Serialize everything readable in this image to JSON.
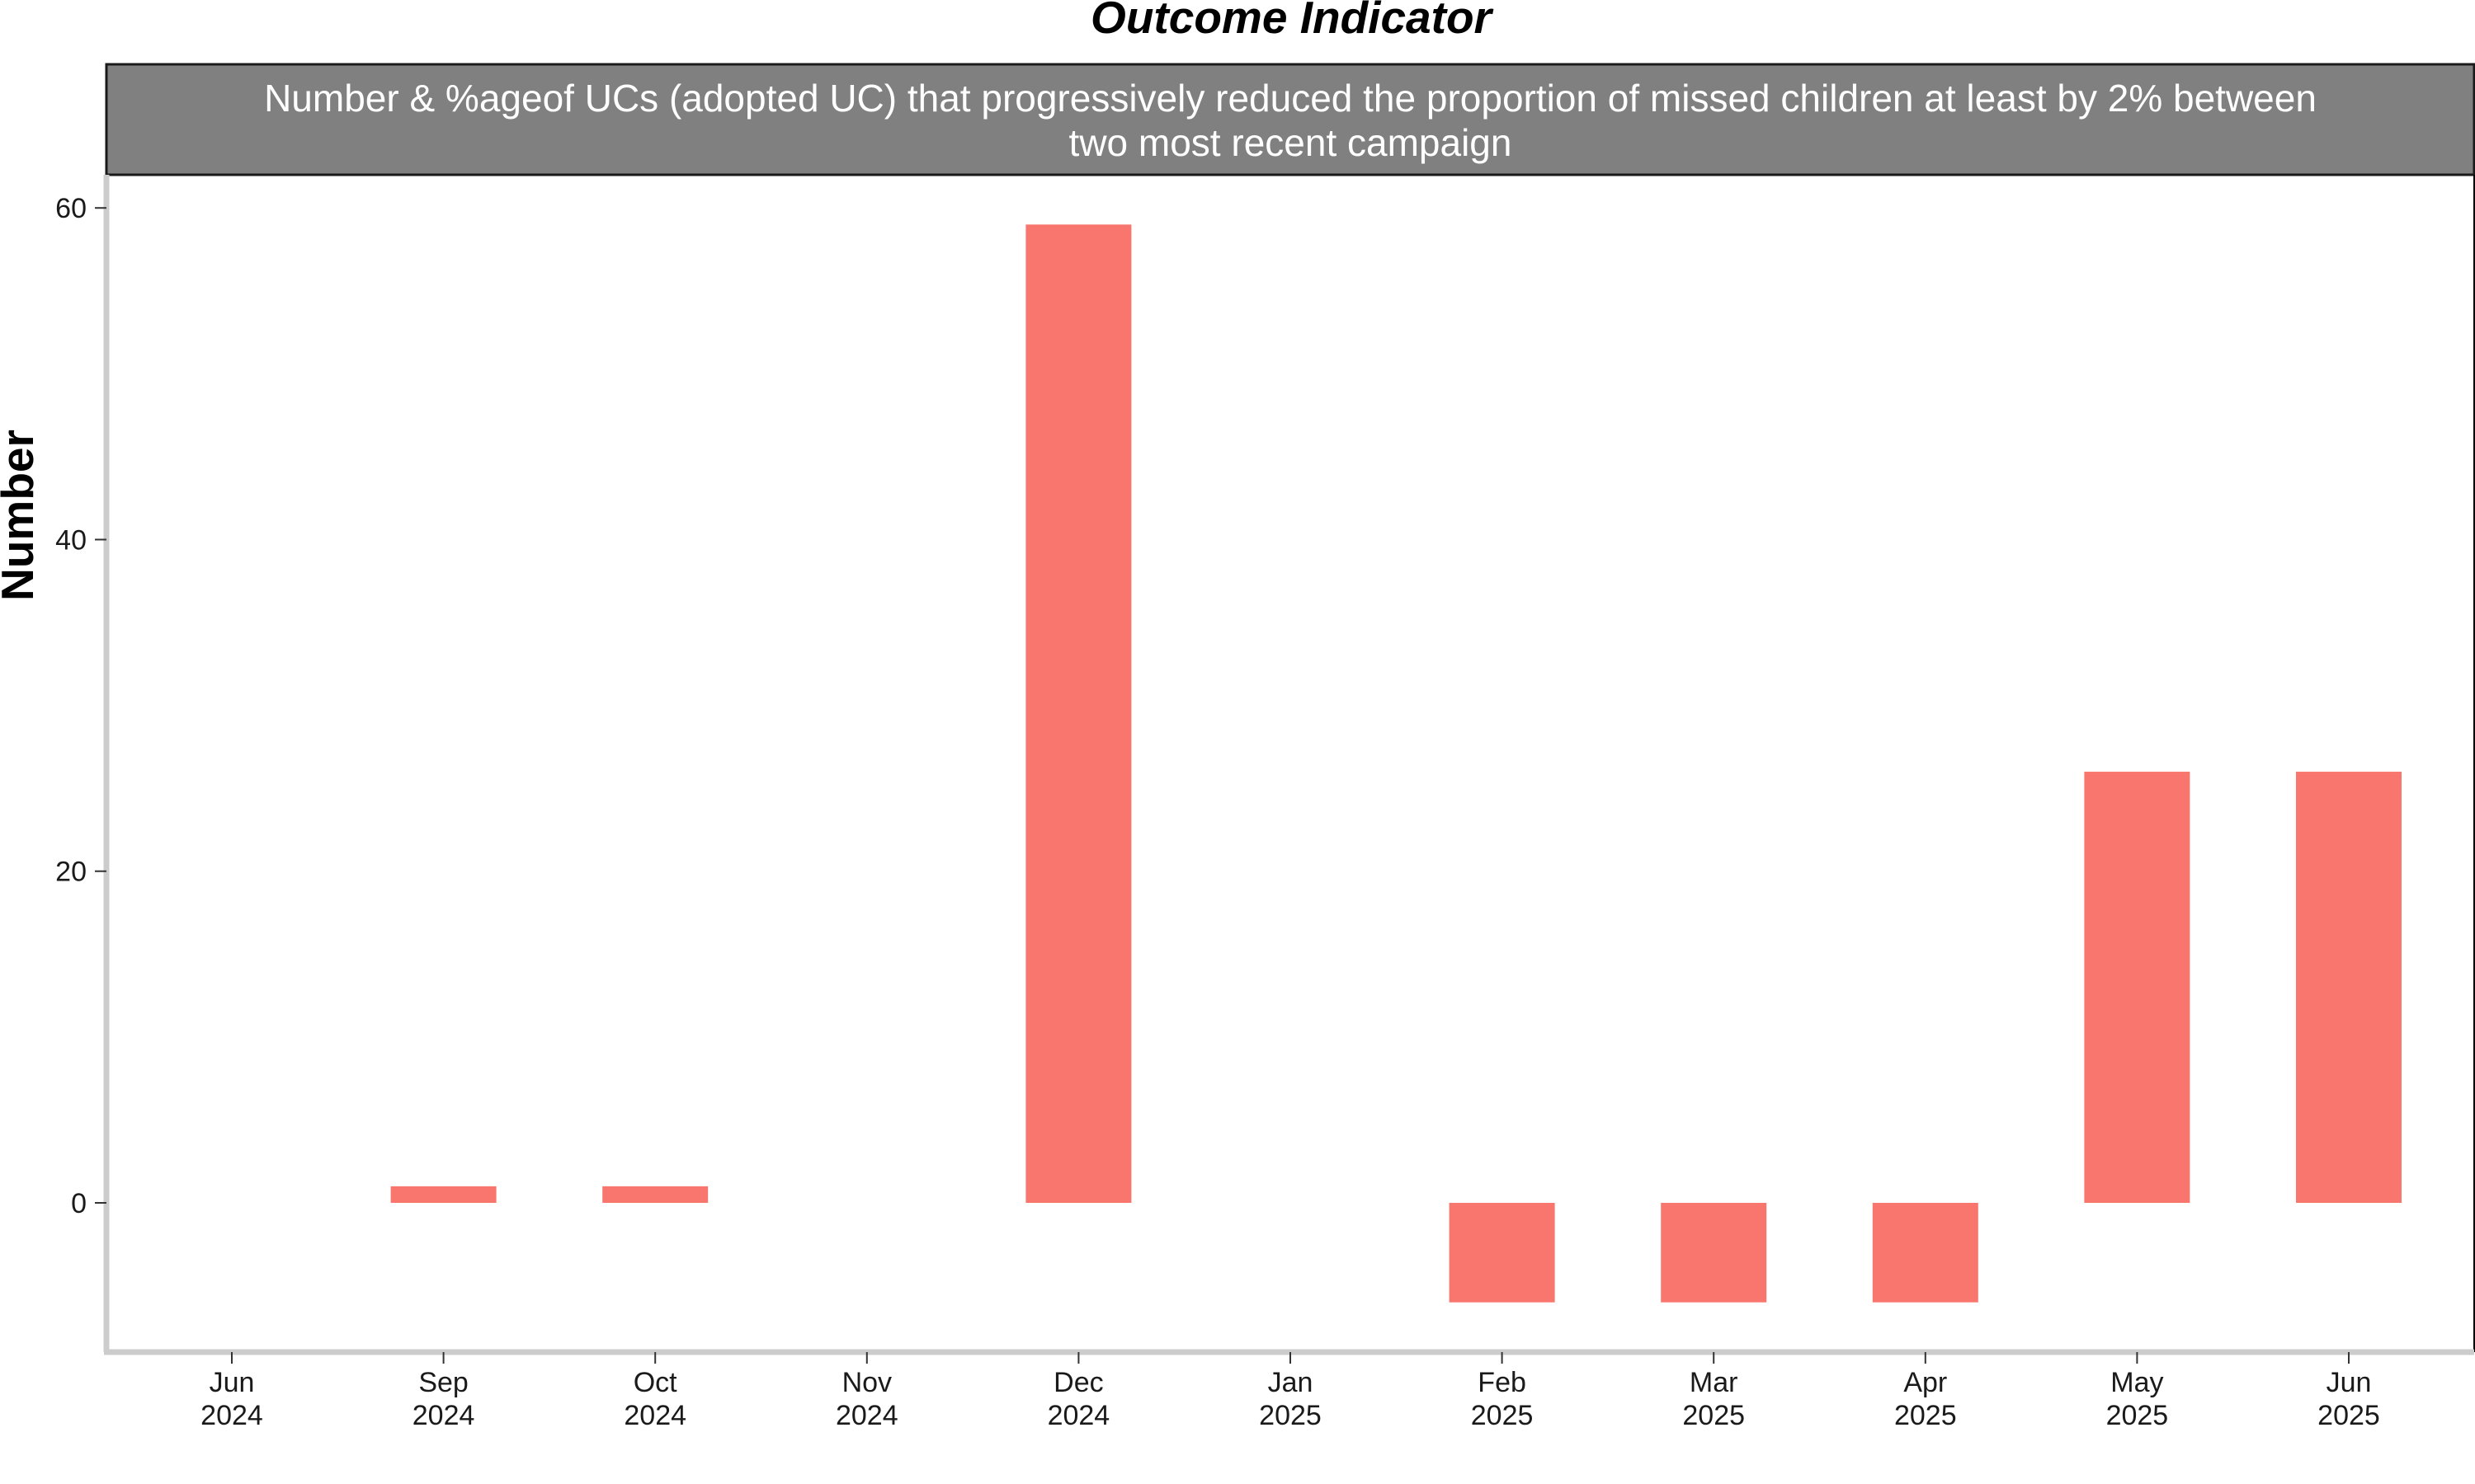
{
  "chart_data": {
    "type": "bar",
    "title": "Outcome Indicator",
    "subtitle_lines": [
      "Number & %ageof UCs (adopted UC) that progressively reduced the proportion of missed children at least by 2% between",
      "two most recent campaign"
    ],
    "ylabel": "Number",
    "xlabel": "",
    "categories": [
      {
        "month": "Jun",
        "year": "2024"
      },
      {
        "month": "Sep",
        "year": "2024"
      },
      {
        "month": "Oct",
        "year": "2024"
      },
      {
        "month": "Nov",
        "year": "2024"
      },
      {
        "month": "Dec",
        "year": "2024"
      },
      {
        "month": "Jan",
        "year": "2025"
      },
      {
        "month": "Feb",
        "year": "2025"
      },
      {
        "month": "Mar",
        "year": "2025"
      },
      {
        "month": "Apr",
        "year": "2025"
      },
      {
        "month": "May",
        "year": "2025"
      },
      {
        "month": "Jun",
        "year": "2025"
      }
    ],
    "values": [
      null,
      1,
      1,
      null,
      59,
      null,
      -6,
      -6,
      -6,
      26,
      26
    ],
    "yticks": [
      "0",
      "20",
      "40",
      "60"
    ],
    "ytick_values": [
      0,
      20,
      40,
      60
    ],
    "ylim": [
      -9,
      62
    ],
    "grid": false,
    "legend": "none",
    "colors": {
      "bar": "#F8766D",
      "strip": "#808080",
      "strip_text": "#FFFFFF",
      "axis": "#CCCCCC",
      "panel_border": "#000000"
    }
  }
}
